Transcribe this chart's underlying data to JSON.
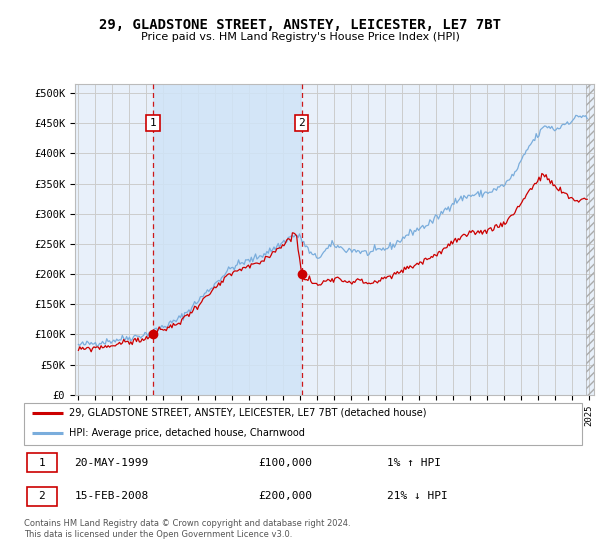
{
  "title": "29, GLADSTONE STREET, ANSTEY, LEICESTER, LE7 7BT",
  "subtitle": "Price paid vs. HM Land Registry's House Price Index (HPI)",
  "ylabel_ticks": [
    "£0",
    "£50K",
    "£100K",
    "£150K",
    "£200K",
    "£250K",
    "£300K",
    "£350K",
    "£400K",
    "£450K",
    "£500K"
  ],
  "ytick_values": [
    0,
    50000,
    100000,
    150000,
    200000,
    250000,
    300000,
    350000,
    400000,
    450000,
    500000
  ],
  "ylim": [
    0,
    515000
  ],
  "xlim_start": 1994.8,
  "xlim_end": 2025.3,
  "red_line_color": "#cc0000",
  "blue_line_color": "#7aaddc",
  "grid_color": "#cccccc",
  "plot_bg": "#e8f0fa",
  "shade_between_color": "#d0e4f7",
  "marker1_year": 1999.38,
  "marker1_value": 100000,
  "marker2_year": 2008.12,
  "marker2_value": 200000,
  "marker1_date": "20-MAY-1999",
  "marker1_price": "£100,000",
  "marker1_hpi": "1% ↑ HPI",
  "marker2_date": "15-FEB-2008",
  "marker2_price": "£200,000",
  "marker2_hpi": "21% ↓ HPI",
  "legend_label_red": "29, GLADSTONE STREET, ANSTEY, LEICESTER, LE7 7BT (detached house)",
  "legend_label_blue": "HPI: Average price, detached house, Charnwood",
  "footer_text": "Contains HM Land Registry data © Crown copyright and database right 2024.\nThis data is licensed under the Open Government Licence v3.0."
}
